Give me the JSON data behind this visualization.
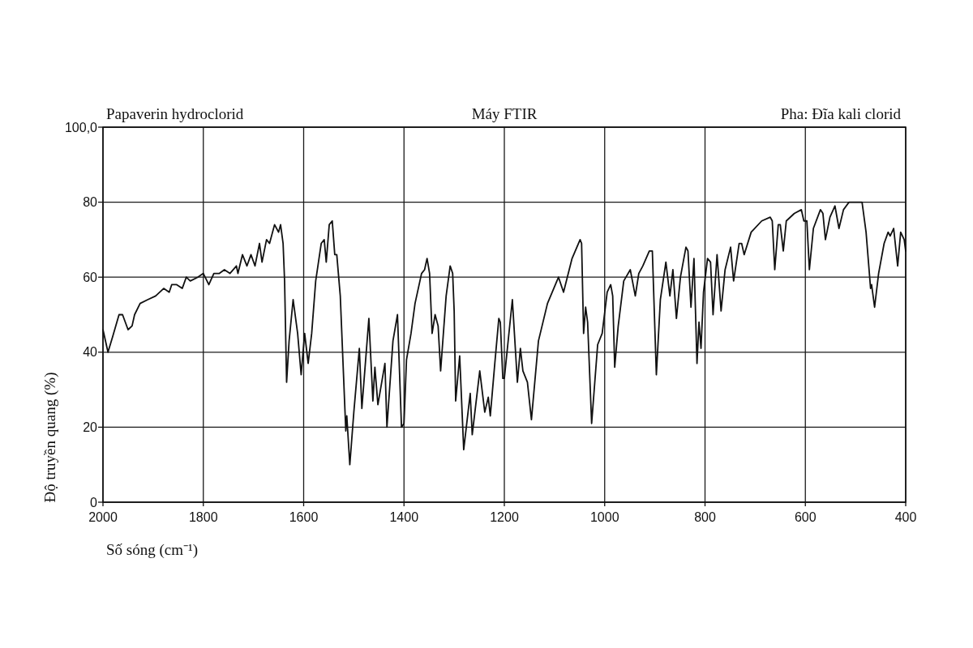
{
  "chart_data": {
    "type": "line",
    "title": "Máy FTIR",
    "annotations": [
      "Papaverin hydroclorid",
      "Pha: Đĩa kali clorid"
    ],
    "xlabel": "Số sóng (cm⁻¹)",
    "ylabel": "Độ truyền quang (%)",
    "xlim": [
      2000,
      400
    ],
    "xticks": [
      2000,
      1800,
      1600,
      1400,
      1200,
      1000,
      800,
      600,
      400
    ],
    "ylim": [
      0,
      100
    ],
    "yticks": [
      0,
      20,
      40,
      60,
      80,
      {
        "value": 100,
        "label": "100,0"
      }
    ],
    "grid": true,
    "color": "#111111",
    "x": [
      2000,
      1990,
      1981,
      1968,
      1961,
      1950,
      1942,
      1937,
      1926,
      1911,
      1895,
      1879,
      1868,
      1863,
      1853,
      1842,
      1834,
      1826,
      1811,
      1800,
      1789,
      1779,
      1768,
      1758,
      1747,
      1734,
      1731,
      1722,
      1713,
      1705,
      1697,
      1688,
      1683,
      1674,
      1668,
      1658,
      1650,
      1646,
      1641,
      1638,
      1634,
      1629,
      1621,
      1612,
      1605,
      1598,
      1591,
      1584,
      1576,
      1565,
      1559,
      1555,
      1549,
      1543,
      1538,
      1534,
      1527,
      1516,
      1514,
      1508,
      1500,
      1489,
      1484,
      1470,
      1462,
      1458,
      1452,
      1438,
      1434,
      1422,
      1413,
      1405,
      1400,
      1395,
      1386,
      1378,
      1365,
      1359,
      1354,
      1349,
      1344,
      1338,
      1332,
      1327,
      1316,
      1308,
      1303,
      1300,
      1297,
      1289,
      1281,
      1268,
      1264,
      1249,
      1239,
      1232,
      1228,
      1219,
      1211,
      1208,
      1203,
      1200,
      1184,
      1174,
      1168,
      1163,
      1154,
      1146,
      1132,
      1114,
      1092,
      1082,
      1065,
      1049,
      1046,
      1042,
      1038,
      1034,
      1026,
      1014,
      1005,
      995,
      988,
      984,
      980,
      973,
      962,
      949,
      939,
      932,
      924,
      911,
      905,
      897,
      889,
      878,
      870,
      864,
      857,
      849,
      838,
      834,
      828,
      822,
      816,
      812,
      808,
      803,
      795,
      789,
      784,
      776,
      768,
      760,
      749,
      743,
      732,
      727,
      722,
      708,
      687,
      670,
      666,
      661,
      654,
      650,
      644,
      638,
      622,
      608,
      603,
      597,
      592,
      584,
      570,
      565,
      560,
      551,
      541,
      533,
      524,
      513,
      505,
      492,
      487,
      479,
      470,
      468,
      462,
      454,
      443,
      435,
      431,
      424,
      416,
      410,
      403,
      400
    ],
    "values": [
      46,
      40,
      44,
      50,
      50,
      46,
      47,
      50,
      53,
      54,
      55,
      57,
      56,
      58,
      58,
      57,
      60,
      59,
      60,
      61,
      58,
      61,
      61,
      62,
      61,
      63,
      61,
      66,
      63,
      66,
      63,
      69,
      64,
      70,
      69,
      74,
      72,
      74,
      69,
      59,
      32,
      43,
      54,
      45,
      34,
      45,
      37,
      45,
      59,
      69,
      70,
      64,
      74,
      75,
      66,
      66,
      55,
      19,
      23,
      10,
      24,
      41,
      25,
      49,
      27,
      36,
      26,
      37,
      20,
      43,
      50,
      20,
      21,
      38,
      45,
      53,
      61,
      62,
      65,
      61,
      45,
      50,
      47,
      35,
      55,
      63,
      61,
      51,
      27,
      39,
      14,
      29,
      18,
      35,
      24,
      28,
      23,
      37,
      49,
      48,
      33,
      33,
      54,
      32,
      41,
      35,
      32,
      22,
      43,
      53,
      60,
      56,
      65,
      70,
      69,
      45,
      52,
      48,
      21,
      42,
      45,
      56,
      58,
      55,
      36,
      47,
      59,
      62,
      55,
      61,
      63,
      67,
      67,
      34,
      54,
      64,
      55,
      62,
      49,
      60,
      68,
      67,
      52,
      65,
      37,
      48,
      41,
      56,
      65,
      64,
      50,
      66,
      51,
      62,
      68,
      59,
      69,
      69,
      66,
      72,
      75,
      76,
      75,
      62,
      74,
      74,
      67,
      75,
      77,
      78,
      75,
      75,
      62,
      73,
      78,
      77,
      70,
      76,
      79,
      73,
      78,
      80,
      80,
      80,
      80,
      72,
      57,
      58,
      52,
      61,
      69,
      72,
      71,
      73,
      63,
      72,
      70,
      67
    ]
  }
}
